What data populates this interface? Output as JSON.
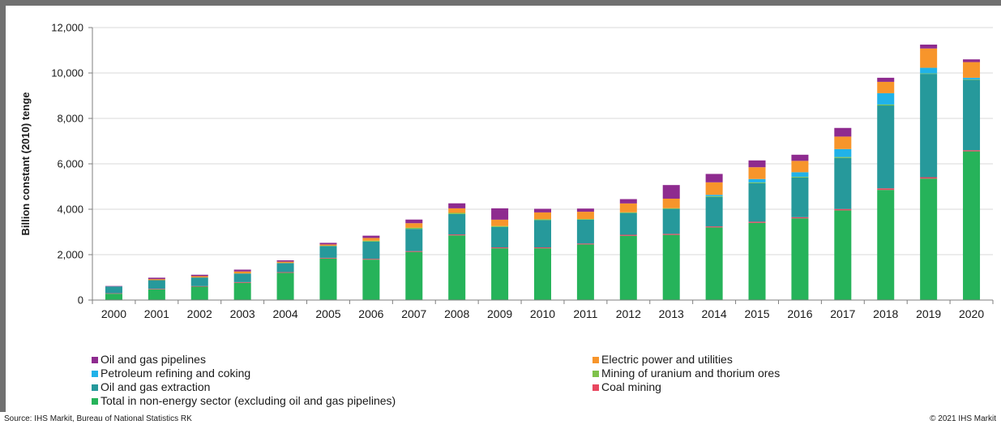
{
  "chart_data": {
    "type": "bar",
    "stacked": true,
    "categories": [
      "2000",
      "2001",
      "2002",
      "2003",
      "2004",
      "2005",
      "2006",
      "2007",
      "2008",
      "2009",
      "2010",
      "2011",
      "2012",
      "2013",
      "2014",
      "2015",
      "2016",
      "2017",
      "2018",
      "2019",
      "2020"
    ],
    "ylabel": "Billion constant (2010) tenge",
    "ylim": [
      0,
      12000
    ],
    "yticks": [
      0,
      2000,
      4000,
      6000,
      8000,
      10000,
      12000
    ],
    "ytick_labels": [
      "0",
      "2,000",
      "4,000",
      "6,000",
      "8,000",
      "10,000",
      "12,000"
    ],
    "grid": true,
    "legend_position": "bottom",
    "series": [
      {
        "name": "Total in non-energy sector (excluding oil and gas pipelines)",
        "color": "#26b35a",
        "values": [
          280,
          470,
          590,
          760,
          1200,
          1830,
          1780,
          2120,
          2850,
          2280,
          2280,
          2450,
          2830,
          2870,
          3200,
          3400,
          3600,
          3950,
          4850,
          5350,
          6550
        ]
      },
      {
        "name": "Coal mining",
        "color": "#e8475f",
        "values": [
          20,
          25,
          25,
          30,
          30,
          30,
          35,
          35,
          40,
          40,
          40,
          40,
          45,
          45,
          45,
          50,
          50,
          60,
          70,
          60,
          50
        ]
      },
      {
        "name": "Oil and gas extraction",
        "color": "#26999b",
        "values": [
          300,
          380,
          380,
          380,
          400,
          520,
          760,
          980,
          900,
          900,
          1200,
          1050,
          960,
          1100,
          1300,
          1700,
          1750,
          2250,
          3650,
          4550,
          3100
        ]
      },
      {
        "name": "Mining of uranium and thorium ores",
        "color": "#7fc24b",
        "values": [
          0,
          0,
          0,
          0,
          0,
          10,
          40,
          50,
          50,
          40,
          40,
          30,
          30,
          30,
          30,
          30,
          30,
          40,
          40,
          20,
          20
        ]
      },
      {
        "name": "Petroleum refining and coking",
        "color": "#20b2e8",
        "values": [
          0,
          0,
          0,
          0,
          0,
          0,
          0,
          0,
          0,
          0,
          0,
          0,
          0,
          0,
          60,
          150,
          200,
          350,
          500,
          250,
          70
        ]
      },
      {
        "name": "Electric power and utilities",
        "color": "#f7952b",
        "values": [
          0,
          50,
          60,
          90,
          60,
          60,
          120,
          200,
          200,
          280,
          300,
          320,
          390,
          420,
          550,
          520,
          500,
          550,
          500,
          850,
          690
        ]
      },
      {
        "name": "Oil and gas pipelines",
        "color": "#8e2b8f",
        "values": [
          20,
          60,
          60,
          80,
          60,
          70,
          100,
          160,
          220,
          500,
          160,
          140,
          190,
          600,
          370,
          300,
          270,
          380,
          180,
          170,
          120
        ]
      }
    ]
  },
  "legend": [
    {
      "label": "Oil and gas pipelines",
      "color": "#8e2b8f"
    },
    {
      "label": "Petroleum refining and coking",
      "color": "#20b2e8"
    },
    {
      "label": "Oil and gas extraction",
      "color": "#26999b"
    },
    {
      "label": "Total in non-energy sector (excluding oil and gas pipelines)",
      "color": "#26b35a"
    },
    {
      "label": "Electric power and utilities",
      "color": "#f7952b"
    },
    {
      "label": "Mining of uranium and thorium ores",
      "color": "#7fc24b"
    },
    {
      "label": "Coal mining",
      "color": "#e8475f"
    }
  ],
  "footer": {
    "source": "Source: IHS Markit, Bureau of National Statistics RK",
    "copyright": "© 2021 IHS Markit"
  }
}
